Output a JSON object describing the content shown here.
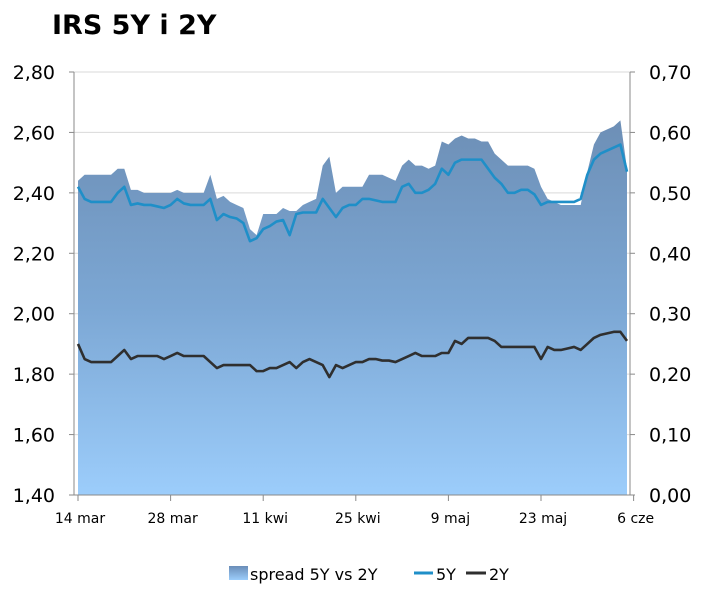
{
  "chart_data": {
    "type": "line",
    "title": "IRS 5Y i 2Y",
    "legend_position": "bottom",
    "grid": "horizontal",
    "x_tick_labels": [
      "14 mar",
      "28 mar",
      "11 kwi",
      "25 kwi",
      "9 maj",
      "23 maj",
      "6 cze"
    ],
    "y_left": {
      "ylim": [
        1.4,
        2.8
      ],
      "ticks": [
        "1,40",
        "1,60",
        "1,80",
        "2,00",
        "2,20",
        "2,40",
        "2,60",
        "2,80"
      ]
    },
    "y_right": {
      "ylim": [
        0.0,
        0.7
      ],
      "ticks": [
        "0,00",
        "0,10",
        "0,20",
        "0,30",
        "0,40",
        "0,50",
        "0,60",
        "0,70"
      ]
    },
    "legend": [
      "spread 5Y vs 2Y",
      "5Y",
      "2Y"
    ],
    "series": [
      {
        "name": "5Y",
        "axis": "left",
        "color": "#1f8fc8",
        "values": [
          2.42,
          2.38,
          2.37,
          2.37,
          2.37,
          2.37,
          2.4,
          2.42,
          2.36,
          2.365,
          2.36,
          2.36,
          2.355,
          2.35,
          2.36,
          2.38,
          2.365,
          2.36,
          2.36,
          2.36,
          2.38,
          2.31,
          2.33,
          2.32,
          2.315,
          2.3,
          2.24,
          2.25,
          2.28,
          2.29,
          2.305,
          2.31,
          2.26,
          2.33,
          2.335,
          2.335,
          2.335,
          2.38,
          2.35,
          2.32,
          2.35,
          2.36,
          2.36,
          2.38,
          2.38,
          2.375,
          2.37,
          2.37,
          2.37,
          2.42,
          2.43,
          2.4,
          2.4,
          2.41,
          2.43,
          2.48,
          2.46,
          2.5,
          2.51,
          2.51,
          2.51,
          2.51,
          2.48,
          2.45,
          2.43,
          2.4,
          2.4,
          2.41,
          2.41,
          2.395,
          2.36,
          2.37,
          2.37,
          2.37,
          2.37,
          2.37,
          2.38,
          2.46,
          2.51,
          2.53,
          2.54,
          2.55,
          2.56,
          2.47
        ]
      },
      {
        "name": "2Y",
        "axis": "left",
        "color": "#2f2f2f",
        "values": [
          1.9,
          1.85,
          1.84,
          1.84,
          1.84,
          1.84,
          1.86,
          1.88,
          1.85,
          1.86,
          1.86,
          1.86,
          1.86,
          1.85,
          1.86,
          1.87,
          1.86,
          1.86,
          1.86,
          1.86,
          1.84,
          1.82,
          1.83,
          1.83,
          1.83,
          1.83,
          1.83,
          1.81,
          1.81,
          1.82,
          1.82,
          1.83,
          1.84,
          1.82,
          1.84,
          1.85,
          1.84,
          1.83,
          1.79,
          1.83,
          1.82,
          1.83,
          1.84,
          1.84,
          1.85,
          1.85,
          1.845,
          1.845,
          1.84,
          1.85,
          1.86,
          1.87,
          1.86,
          1.86,
          1.86,
          1.87,
          1.87,
          1.91,
          1.9,
          1.92,
          1.92,
          1.92,
          1.92,
          1.91,
          1.89,
          1.89,
          1.89,
          1.89,
          1.89,
          1.89,
          1.85,
          1.89,
          1.88,
          1.88,
          1.885,
          1.89,
          1.88,
          1.9,
          1.92,
          1.93,
          1.935,
          1.94,
          1.94,
          1.91
        ]
      },
      {
        "name": "spread 5Y vs 2Y",
        "axis": "right",
        "color": "#6f93bd",
        "values": [
          0.52,
          0.53,
          0.53,
          0.53,
          0.53,
          0.53,
          0.54,
          0.54,
          0.505,
          0.505,
          0.5,
          0.5,
          0.5,
          0.5,
          0.5,
          0.505,
          0.5,
          0.5,
          0.5,
          0.5,
          0.53,
          0.49,
          0.495,
          0.485,
          0.48,
          0.475,
          0.44,
          0.43,
          0.465,
          0.465,
          0.465,
          0.475,
          0.47,
          0.47,
          0.48,
          0.485,
          0.49,
          0.545,
          0.56,
          0.5,
          0.51,
          0.51,
          0.51,
          0.51,
          0.53,
          0.53,
          0.53,
          0.525,
          0.52,
          0.545,
          0.555,
          0.545,
          0.545,
          0.54,
          0.545,
          0.585,
          0.58,
          0.59,
          0.595,
          0.59,
          0.59,
          0.585,
          0.585,
          0.565,
          0.555,
          0.545,
          0.545,
          0.545,
          0.545,
          0.54,
          0.51,
          0.49,
          0.485,
          0.48,
          0.48,
          0.48,
          0.48,
          0.535,
          0.58,
          0.6,
          0.605,
          0.61,
          0.62,
          0.54
        ]
      }
    ],
    "x_tick_indices": [
      0,
      14,
      28,
      42,
      56,
      70,
      84
    ]
  }
}
